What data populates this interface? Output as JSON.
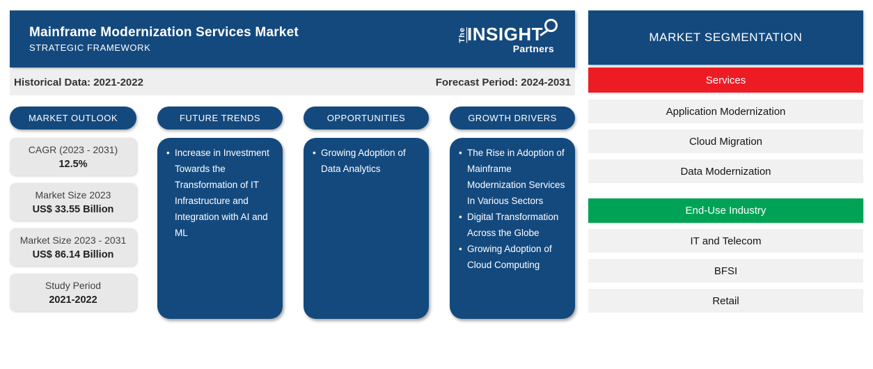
{
  "colors": {
    "primary_blue": "#14497e",
    "accent_red": "#ed1c24",
    "accent_green": "#00a355",
    "period_bar_gray": "#efefef",
    "stat_box_gray": "#e8e8e8",
    "segment_item_gray": "#f1f1f1"
  },
  "header": {
    "title": "Mainframe Modernization Services Market",
    "subtitle": "STRATEGIC FRAMEWORK",
    "logo": {
      "prefix": "The",
      "name": "INSIGHT",
      "suffix": "Partners"
    }
  },
  "period_bar": {
    "historical": "Historical Data: 2021-2022",
    "forecast": "Forecast Period: 2024-2031"
  },
  "columns": {
    "market_outlook": {
      "title": "MARKET OUTLOOK",
      "stats": [
        {
          "label": "CAGR (2023 - 2031)",
          "value": "12.5%"
        },
        {
          "label": "Market Size 2023",
          "value": "US$ 33.55 Billion"
        },
        {
          "label": "Market Size 2023 - 2031",
          "value": "US$ 86.14 Billion"
        },
        {
          "label": "Study Period",
          "value": "2021-2022"
        }
      ]
    },
    "future_trends": {
      "title": "FUTURE TRENDS",
      "bullets": [
        "Increase in Investment Towards the Transformation of IT Infrastructure and Integration with AI and ML"
      ]
    },
    "opportunities": {
      "title": "OPPORTUNITIES",
      "bullets": [
        "Growing Adoption of Data Analytics"
      ]
    },
    "growth_drivers": {
      "title": "GROWTH DRIVERS",
      "bullets": [
        "The Rise in Adoption of Mainframe Modernization Services In Various Sectors",
        "Digital Transformation Across the Globe",
        "Growing Adoption of Cloud Computing"
      ]
    }
  },
  "segmentation": {
    "title": "MARKET SEGMENTATION",
    "groups": [
      {
        "name": "Services",
        "color": "#ed1c24",
        "items": [
          "Application Modernization",
          "Cloud Migration",
          "Data Modernization"
        ]
      },
      {
        "name": "End-Use Industry",
        "color": "#00a355",
        "items": [
          "IT and Telecom",
          "BFSI",
          "Retail"
        ]
      }
    ]
  }
}
